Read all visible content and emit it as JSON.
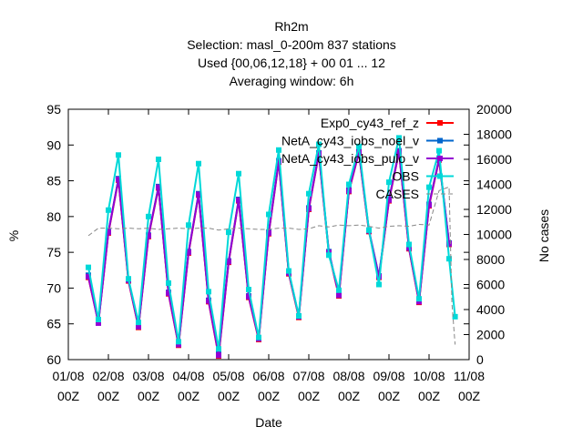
{
  "chart_data": {
    "type": "line",
    "title_lines": [
      "Rh2m",
      "Selection: masl_0-200m    837 stations",
      "Used {00,06,12,18} + 00 01 ... 12",
      "Averaging window:  6h"
    ],
    "xlabel": "Date",
    "ylabel": "%",
    "y2label": "No cases",
    "x_ticks": [
      {
        "day": 0,
        "line1": "01/08",
        "line2": "00Z"
      },
      {
        "day": 1,
        "line1": "02/08",
        "line2": "00Z"
      },
      {
        "day": 2,
        "line1": "03/08",
        "line2": "00Z"
      },
      {
        "day": 3,
        "line1": "04/08",
        "line2": "00Z"
      },
      {
        "day": 4,
        "line1": "05/08",
        "line2": "00Z"
      },
      {
        "day": 5,
        "line1": "06/08",
        "line2": "00Z"
      },
      {
        "day": 6,
        "line1": "07/08",
        "line2": "00Z"
      },
      {
        "day": 7,
        "line1": "08/08",
        "line2": "00Z"
      },
      {
        "day": 8,
        "line1": "09/08",
        "line2": "00Z"
      },
      {
        "day": 9,
        "line1": "10/08",
        "line2": "00Z"
      },
      {
        "day": 10,
        "line1": "11/08",
        "line2": "00Z"
      }
    ],
    "xlim_days": [
      0,
      10
    ],
    "ylim": [
      60,
      95
    ],
    "y_ticks": [
      60,
      65,
      70,
      75,
      80,
      85,
      90,
      95
    ],
    "y2lim": [
      0,
      20000
    ],
    "y2_ticks": [
      0,
      2000,
      4000,
      6000,
      8000,
      10000,
      12000,
      14000,
      16000,
      18000,
      20000
    ],
    "legend_position": "top-right",
    "grid": false,
    "series": [
      {
        "name": "Exp0_cy43_ref_z",
        "color": "#ff0000",
        "marker": "square",
        "x_days": [
          0.5,
          0.75,
          1.0,
          1.25,
          1.5,
          1.75,
          2.0,
          2.25,
          2.5,
          2.75,
          3.0,
          3.25,
          3.5,
          3.75,
          4.0,
          4.25,
          4.5,
          4.75,
          5.0,
          5.25,
          5.5,
          5.75,
          6.0,
          6.25,
          6.5,
          6.75,
          7.0,
          7.25,
          7.5,
          7.75,
          8.0,
          8.25,
          8.5,
          8.75,
          9.0,
          9.25,
          9.5
        ],
        "values": [
          71.5,
          65.2,
          77.7,
          85.1,
          71.0,
          64.5,
          77.2,
          84.0,
          69.2,
          62.0,
          74.9,
          83.0,
          68.1,
          60.5,
          73.6,
          82.2,
          68.7,
          62.8,
          77.6,
          87.6,
          72.0,
          65.9,
          81.0,
          88.7,
          74.9,
          68.9,
          83.5,
          88.9,
          77.9,
          71.5,
          82.2,
          89.0,
          75.5,
          68.0,
          81.5,
          87.9,
          76.1
        ]
      },
      {
        "name": "NetA_cy43_iobs_noel_v",
        "color": "#0066cc",
        "marker": "square",
        "x_days": [
          0.5,
          0.75,
          1.0,
          1.25,
          1.5,
          1.75,
          2.0,
          2.25,
          2.5,
          2.75,
          3.0,
          3.25,
          3.5,
          3.75,
          4.0,
          4.25,
          4.5,
          4.75,
          5.0,
          5.25,
          5.5,
          5.75,
          6.0,
          6.25,
          6.5,
          6.75,
          7.0,
          7.25,
          7.5,
          7.75,
          8.0,
          8.25,
          8.5,
          8.75,
          9.0,
          9.25,
          9.5
        ],
        "values": [
          71.8,
          65.3,
          77.9,
          85.3,
          71.2,
          64.7,
          77.4,
          84.2,
          69.4,
          62.2,
          75.1,
          83.2,
          68.3,
          60.8,
          73.8,
          82.4,
          68.9,
          63.0,
          77.8,
          87.8,
          72.2,
          66.1,
          81.2,
          88.9,
          75.1,
          69.1,
          83.7,
          89.1,
          78.1,
          71.7,
          82.4,
          89.2,
          75.7,
          68.2,
          81.7,
          88.1,
          76.3
        ]
      },
      {
        "name": "NetA_cy43_iobs_pulo_v",
        "color": "#9400d3",
        "marker": "square",
        "x_days": [
          0.5,
          0.75,
          1.0,
          1.25,
          1.5,
          1.75,
          2.0,
          2.25,
          2.5,
          2.75,
          3.0,
          3.25,
          3.5,
          3.75,
          4.0,
          4.25,
          4.5,
          4.75,
          5.0,
          5.25,
          5.5,
          5.75,
          6.0,
          6.25,
          6.5,
          6.75,
          7.0,
          7.25,
          7.5,
          7.75,
          8.0,
          8.25,
          8.5,
          8.75,
          9.0,
          9.25,
          9.5
        ],
        "values": [
          71.6,
          65.1,
          77.8,
          85.2,
          71.1,
          64.6,
          77.3,
          84.1,
          69.3,
          62.1,
          75.0,
          83.1,
          68.2,
          60.6,
          73.7,
          82.3,
          68.8,
          62.9,
          77.7,
          87.7,
          72.1,
          66.0,
          81.1,
          88.8,
          75.0,
          69.0,
          83.6,
          89.0,
          78.0,
          71.6,
          82.3,
          89.1,
          75.6,
          68.1,
          81.6,
          88.0,
          76.2
        ]
      },
      {
        "name": "OBS",
        "color": "#00d8d8",
        "marker": "square",
        "x_days": [
          0.5,
          0.75,
          1.0,
          1.25,
          1.5,
          1.75,
          2.0,
          2.25,
          2.5,
          2.75,
          3.0,
          3.25,
          3.5,
          3.75,
          4.0,
          4.25,
          4.5,
          4.75,
          5.0,
          5.25,
          5.5,
          5.75,
          6.0,
          6.25,
          6.5,
          6.75,
          7.0,
          7.25,
          7.5,
          7.75,
          8.0,
          8.25,
          8.5,
          8.75,
          9.0,
          9.25,
          9.5,
          9.65
        ],
        "values": [
          72.9,
          65.6,
          80.9,
          88.6,
          71.3,
          65.2,
          80.0,
          88.0,
          70.7,
          62.5,
          78.8,
          87.4,
          69.5,
          61.5,
          77.8,
          86.0,
          69.8,
          63.1,
          80.3,
          89.3,
          72.4,
          66.1,
          83.2,
          90.1,
          74.6,
          69.7,
          84.5,
          89.8,
          78.1,
          70.5,
          84.8,
          91.0,
          76.1,
          68.5,
          84.1,
          89.2,
          74.1,
          66.0
        ]
      },
      {
        "name": "CASES",
        "color": "#888888",
        "marker": "none",
        "dashed": true,
        "axis": "y2",
        "x_days": [
          0.5,
          0.75,
          1.0,
          1.25,
          1.5,
          1.75,
          2.0,
          2.25,
          2.5,
          2.75,
          3.0,
          3.25,
          3.5,
          3.75,
          4.0,
          4.25,
          4.5,
          4.75,
          5.0,
          5.25,
          5.5,
          5.75,
          6.0,
          6.25,
          6.5,
          6.75,
          7.0,
          7.25,
          7.5,
          7.75,
          8.0,
          8.25,
          8.5,
          8.75,
          9.0,
          9.25,
          9.5,
          9.57,
          9.65
        ],
        "values": [
          9900,
          10500,
          10500,
          10450,
          10500,
          10450,
          10500,
          10400,
          10450,
          10500,
          10450,
          10500,
          10500,
          10350,
          10450,
          10500,
          10450,
          10400,
          10400,
          10500,
          10500,
          10400,
          10450,
          10700,
          10600,
          10750,
          10700,
          10750,
          10650,
          10500,
          10650,
          10700,
          10650,
          10800,
          10750,
          13500,
          13800,
          4500,
          1200
        ]
      }
    ]
  }
}
